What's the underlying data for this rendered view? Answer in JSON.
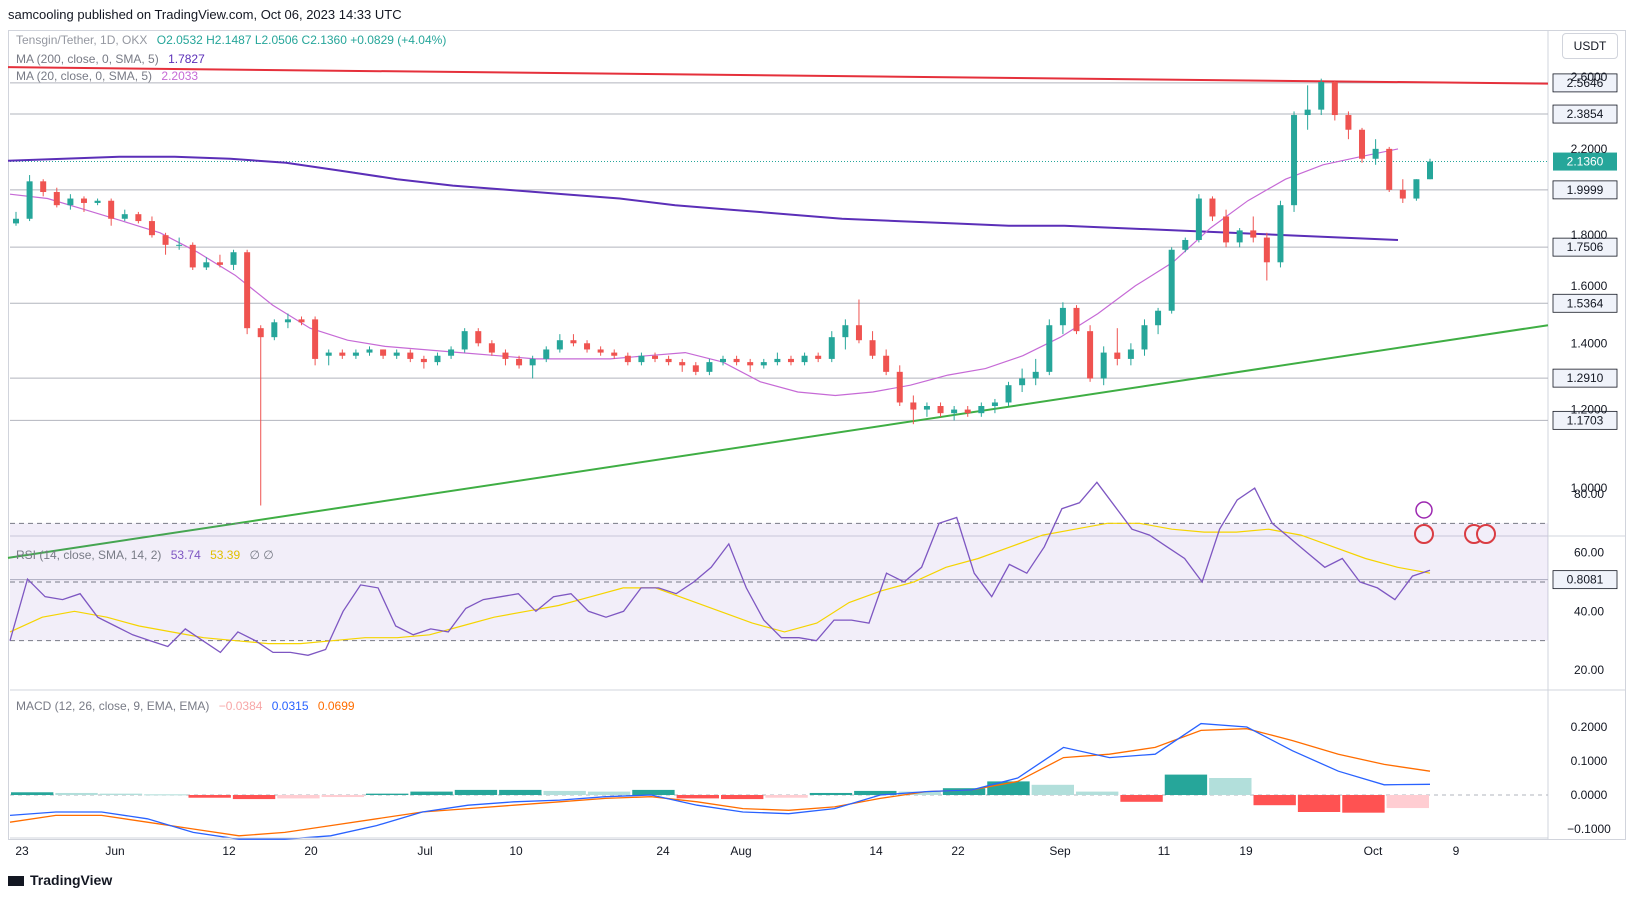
{
  "header": {
    "published": "samcooling published on TradingView.com, Oct 06, 2023 14:33 UTC"
  },
  "footer": {
    "brand": "TradingView"
  },
  "currency": "USDT",
  "legend": {
    "symbol": "Tensgin/Tether, 1D, OKX",
    "ohlc": "O2.0532  H2.1487  L2.0506  C2.1360  +0.0829 (+4.04%)",
    "ma200_label": "MA (200, close, 0, SMA, 5)",
    "ma200_value": "1.7827",
    "ma20_label": "MA (20, close, 0, SMA, 5)",
    "ma20_value": "2.2033",
    "rsi_label": "RSI (14, close, SMA, 14, 2)",
    "rsi_value": "53.74",
    "rsi_ma_value": "53.39",
    "rsi_extra": "∅  ∅",
    "macd_label": "MACD (12, 26, close, 9, EMA, EMA)",
    "macd_hist": "−0.0384",
    "macd_line": "0.0315",
    "macd_signal": "0.0699"
  },
  "colors": {
    "up": "#26a69a",
    "down": "#ef5350",
    "ma200": "#5b2fb8",
    "ma20": "#c66ad6",
    "resistance": "#e5303b",
    "support": "#3fae44",
    "rsi": "#7e57c2",
    "rsi_ma": "#f5d400",
    "macd": "#2962ff",
    "signal": "#ff6d00"
  },
  "chart_data": {
    "type": "candlestick",
    "price_ticks": [
      "2.6000",
      "2.2000",
      "1.8000",
      "1.6000",
      "1.4000",
      "1.2000",
      "1.0000"
    ],
    "price_levels": [
      "2.5646",
      "2.3854",
      "2.1360",
      "1.9999",
      "1.7506",
      "1.5364",
      "1.2910",
      "1.1703",
      "0.8081"
    ],
    "x_labels": [
      "23",
      "Jun",
      "12",
      "20",
      "Jul",
      "10",
      "24",
      "Aug",
      "14",
      "22",
      "Sep",
      "11",
      "19",
      "Oct",
      "9"
    ],
    "rsi_ticks": [
      "80.00",
      "60.00",
      "40.00",
      "20.00"
    ],
    "macd_ticks": [
      "0.2000",
      "0.1000",
      "0.0000",
      "−0.1000"
    ],
    "trendlines": {
      "resistance": [
        [
          0,
          2.66
        ],
        [
          104,
          2.56
        ]
      ],
      "support": [
        [
          0,
          0.85
        ],
        [
          104,
          1.46
        ]
      ]
    },
    "candles": [
      [
        1.85,
        1.9,
        1.84,
        1.87
      ],
      [
        1.87,
        2.07,
        1.86,
        2.04
      ],
      [
        2.04,
        2.05,
        1.97,
        1.99
      ],
      [
        1.99,
        2.01,
        1.92,
        1.93
      ],
      [
        1.93,
        1.98,
        1.91,
        1.96
      ],
      [
        1.96,
        1.97,
        1.9,
        1.94
      ],
      [
        1.94,
        1.96,
        1.93,
        1.95
      ],
      [
        1.95,
        1.96,
        1.84,
        1.87
      ],
      [
        1.87,
        1.91,
        1.86,
        1.89
      ],
      [
        1.89,
        1.9,
        1.85,
        1.86
      ],
      [
        1.86,
        1.88,
        1.79,
        1.8
      ],
      [
        1.8,
        1.81,
        1.72,
        1.76
      ],
      [
        1.76,
        1.79,
        1.74,
        1.76
      ],
      [
        1.76,
        1.77,
        1.66,
        1.67
      ],
      [
        1.67,
        1.71,
        1.66,
        1.69
      ],
      [
        1.69,
        1.72,
        1.67,
        1.68
      ],
      [
        1.68,
        1.74,
        1.66,
        1.73
      ],
      [
        1.73,
        1.74,
        1.43,
        1.45
      ],
      [
        1.45,
        1.46,
        0.96,
        1.42
      ],
      [
        1.42,
        1.48,
        1.41,
        1.47
      ],
      [
        1.47,
        1.5,
        1.45,
        1.48
      ],
      [
        1.48,
        1.49,
        1.46,
        1.47
      ],
      [
        1.48,
        1.49,
        1.33,
        1.35
      ],
      [
        1.36,
        1.38,
        1.33,
        1.37
      ],
      [
        1.37,
        1.38,
        1.35,
        1.36
      ],
      [
        1.36,
        1.38,
        1.35,
        1.37
      ],
      [
        1.37,
        1.39,
        1.36,
        1.38
      ],
      [
        1.38,
        1.38,
        1.35,
        1.36
      ],
      [
        1.36,
        1.38,
        1.35,
        1.37
      ],
      [
        1.37,
        1.38,
        1.34,
        1.35
      ],
      [
        1.35,
        1.36,
        1.32,
        1.34
      ],
      [
        1.34,
        1.37,
        1.33,
        1.36
      ],
      [
        1.36,
        1.39,
        1.35,
        1.38
      ],
      [
        1.38,
        1.45,
        1.37,
        1.44
      ],
      [
        1.44,
        1.45,
        1.39,
        1.4
      ],
      [
        1.4,
        1.41,
        1.36,
        1.37
      ],
      [
        1.37,
        1.38,
        1.33,
        1.35
      ],
      [
        1.35,
        1.36,
        1.32,
        1.33
      ],
      [
        1.33,
        1.36,
        1.29,
        1.35
      ],
      [
        1.35,
        1.39,
        1.34,
        1.38
      ],
      [
        1.38,
        1.43,
        1.37,
        1.41
      ],
      [
        1.41,
        1.43,
        1.39,
        1.4
      ],
      [
        1.4,
        1.41,
        1.37,
        1.38
      ],
      [
        1.38,
        1.39,
        1.36,
        1.37
      ],
      [
        1.37,
        1.38,
        1.35,
        1.36
      ],
      [
        1.36,
        1.37,
        1.33,
        1.34
      ],
      [
        1.34,
        1.37,
        1.33,
        1.36
      ],
      [
        1.36,
        1.37,
        1.34,
        1.35
      ],
      [
        1.35,
        1.36,
        1.33,
        1.34
      ],
      [
        1.34,
        1.35,
        1.31,
        1.33
      ],
      [
        1.33,
        1.34,
        1.3,
        1.31
      ],
      [
        1.31,
        1.35,
        1.3,
        1.34
      ],
      [
        1.34,
        1.36,
        1.33,
        1.35
      ],
      [
        1.35,
        1.36,
        1.33,
        1.34
      ],
      [
        1.34,
        1.35,
        1.31,
        1.33
      ],
      [
        1.33,
        1.35,
        1.32,
        1.34
      ],
      [
        1.34,
        1.37,
        1.33,
        1.35
      ],
      [
        1.35,
        1.36,
        1.33,
        1.34
      ],
      [
        1.34,
        1.37,
        1.33,
        1.36
      ],
      [
        1.36,
        1.37,
        1.34,
        1.35
      ],
      [
        1.35,
        1.44,
        1.34,
        1.42
      ],
      [
        1.42,
        1.48,
        1.38,
        1.46
      ],
      [
        1.46,
        1.55,
        1.4,
        1.41
      ],
      [
        1.41,
        1.44,
        1.35,
        1.36
      ],
      [
        1.36,
        1.38,
        1.3,
        1.31
      ],
      [
        1.31,
        1.33,
        1.21,
        1.22
      ],
      [
        1.22,
        1.24,
        1.16,
        1.2
      ],
      [
        1.2,
        1.22,
        1.18,
        1.21
      ],
      [
        1.21,
        1.22,
        1.18,
        1.19
      ],
      [
        1.19,
        1.21,
        1.17,
        1.2
      ],
      [
        1.2,
        1.21,
        1.18,
        1.19
      ],
      [
        1.19,
        1.22,
        1.18,
        1.21
      ],
      [
        1.21,
        1.23,
        1.19,
        1.22
      ],
      [
        1.22,
        1.28,
        1.21,
        1.27
      ],
      [
        1.27,
        1.32,
        1.25,
        1.29
      ],
      [
        1.29,
        1.35,
        1.27,
        1.31
      ],
      [
        1.31,
        1.48,
        1.3,
        1.46
      ],
      [
        1.46,
        1.54,
        1.43,
        1.52
      ],
      [
        1.52,
        1.53,
        1.43,
        1.44
      ],
      [
        1.44,
        1.46,
        1.28,
        1.29
      ],
      [
        1.29,
        1.39,
        1.27,
        1.37
      ],
      [
        1.37,
        1.45,
        1.33,
        1.35
      ],
      [
        1.35,
        1.4,
        1.33,
        1.38
      ],
      [
        1.38,
        1.48,
        1.36,
        1.46
      ],
      [
        1.46,
        1.52,
        1.43,
        1.51
      ],
      [
        1.51,
        1.75,
        1.5,
        1.74
      ],
      [
        1.74,
        1.79,
        1.73,
        1.78
      ],
      [
        1.78,
        1.98,
        1.77,
        1.96
      ],
      [
        1.96,
        1.97,
        1.86,
        1.88
      ],
      [
        1.88,
        1.91,
        1.75,
        1.77
      ],
      [
        1.77,
        1.83,
        1.75,
        1.82
      ],
      [
        1.82,
        1.88,
        1.77,
        1.79
      ],
      [
        1.79,
        1.81,
        1.62,
        1.69
      ],
      [
        1.69,
        1.95,
        1.67,
        1.93
      ],
      [
        1.93,
        2.4,
        1.9,
        2.38
      ],
      [
        2.38,
        2.55,
        2.3,
        2.41
      ],
      [
        2.41,
        2.59,
        2.38,
        2.57
      ],
      [
        2.57,
        2.58,
        2.35,
        2.38
      ],
      [
        2.38,
        2.4,
        2.25,
        2.3
      ],
      [
        2.3,
        2.31,
        2.13,
        2.15
      ],
      [
        2.15,
        2.25,
        2.12,
        2.2
      ],
      [
        2.2,
        2.21,
        1.99,
        2.0
      ],
      [
        2.0,
        2.05,
        1.94,
        1.96
      ],
      [
        1.96,
        2.05,
        1.95,
        2.05
      ],
      [
        2.05,
        2.15,
        2.05,
        2.136
      ]
    ],
    "ma200": [
      2.14,
      2.15,
      2.16,
      2.16,
      2.15,
      2.13,
      2.09,
      2.05,
      2.02,
      2.0,
      1.98,
      1.96,
      1.93,
      1.91,
      1.89,
      1.87,
      1.86,
      1.85,
      1.84,
      1.84,
      1.83,
      1.82,
      1.81,
      1.8,
      1.79,
      1.78
    ],
    "ma20": [
      1.98,
      1.96,
      1.91,
      1.86,
      1.81,
      1.73,
      1.64,
      1.53,
      1.45,
      1.41,
      1.39,
      1.38,
      1.37,
      1.36,
      1.35,
      1.35,
      1.35,
      1.36,
      1.37,
      1.34,
      1.28,
      1.25,
      1.24,
      1.25,
      1.27,
      1.3,
      1.32,
      1.36,
      1.42,
      1.5,
      1.6,
      1.69,
      1.83,
      1.95,
      2.05,
      2.12,
      2.16,
      2.2
    ],
    "rsi": [
      30,
      51,
      45,
      44,
      46,
      38,
      35,
      32,
      30,
      28,
      34,
      30,
      26,
      33,
      30,
      26,
      26,
      25,
      27,
      40,
      49,
      48,
      35,
      32,
      34,
      33,
      41,
      44,
      45,
      46,
      40,
      45,
      46,
      40,
      38,
      40,
      48,
      48,
      46,
      50,
      55,
      63,
      48,
      37,
      31,
      31,
      30,
      37,
      37,
      36,
      53,
      50,
      55,
      70,
      72,
      53,
      45,
      56,
      53,
      62,
      75,
      77,
      84,
      76,
      68,
      66,
      62,
      58,
      50,
      68,
      78,
      82,
      70,
      65,
      60,
      55,
      58,
      50,
      48,
      44,
      52,
      54
    ],
    "rsi_ma": [
      33,
      38,
      40,
      38,
      35,
      33,
      31,
      30,
      29,
      29,
      30,
      31,
      31,
      32,
      35,
      38,
      40,
      42,
      45,
      48,
      48,
      44,
      40,
      36,
      33,
      36,
      43,
      47,
      50,
      55,
      58,
      62,
      66,
      68,
      70,
      70,
      68,
      67,
      67,
      68,
      66,
      62,
      58,
      55,
      53
    ],
    "macd": [
      -0.06,
      -0.05,
      -0.05,
      -0.07,
      -0.11,
      -0.13,
      -0.13,
      -0.12,
      -0.09,
      -0.05,
      -0.03,
      -0.02,
      -0.015,
      -0.005,
      0.0,
      -0.03,
      -0.05,
      -0.055,
      -0.04,
      0.0,
      0.01,
      0.015,
      0.05,
      0.14,
      0.11,
      0.12,
      0.21,
      0.2,
      0.13,
      0.07,
      0.03,
      0.0315
    ],
    "signal": [
      -0.08,
      -0.06,
      -0.06,
      -0.08,
      -0.1,
      -0.12,
      -0.11,
      -0.09,
      -0.07,
      -0.05,
      -0.04,
      -0.03,
      -0.02,
      -0.01,
      -0.005,
      -0.02,
      -0.04,
      -0.045,
      -0.035,
      -0.01,
      0.01,
      0.015,
      0.04,
      0.11,
      0.12,
      0.14,
      0.19,
      0.195,
      0.16,
      0.12,
      0.09,
      0.0699
    ],
    "hist": [
      0.008,
      0.006,
      0.004,
      0.002,
      -0.008,
      -0.012,
      -0.01,
      -0.006,
      0.004,
      0.01,
      0.015,
      0.015,
      0.012,
      0.01,
      0.015,
      -0.01,
      -0.012,
      -0.008,
      0.006,
      0.012,
      0.01,
      0.02,
      0.04,
      0.03,
      0.01,
      -0.02,
      0.06,
      0.05,
      -0.03,
      -0.05,
      -0.052,
      -0.0384
    ]
  }
}
